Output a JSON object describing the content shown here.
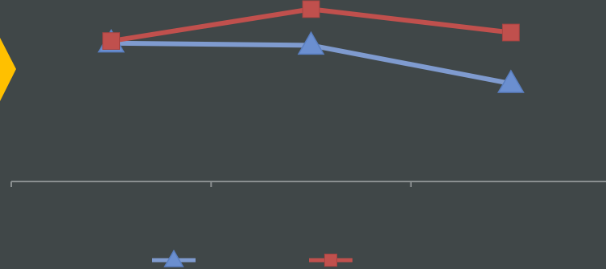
{
  "colors": {
    "background": "#404748",
    "axis": "#8a8f90",
    "accent_shape": "#ffc000"
  },
  "chart_data": {
    "type": "line",
    "title": "",
    "xlabel": "",
    "ylabel": "",
    "categories": [
      "",
      "",
      ""
    ],
    "ylim": [
      0,
      10
    ],
    "grid": false,
    "legend_position": "bottom",
    "series": [
      {
        "name": "",
        "color": "#7f9bcf",
        "marker_color": "#6b8fd0",
        "marker": "triangle",
        "values": [
          6.5,
          6.4,
          4.6
        ]
      },
      {
        "name": "",
        "color": "#c0504d",
        "marker_color": "#c0504d",
        "marker": "square",
        "values": [
          6.6,
          8.1,
          7.0
        ]
      }
    ]
  }
}
